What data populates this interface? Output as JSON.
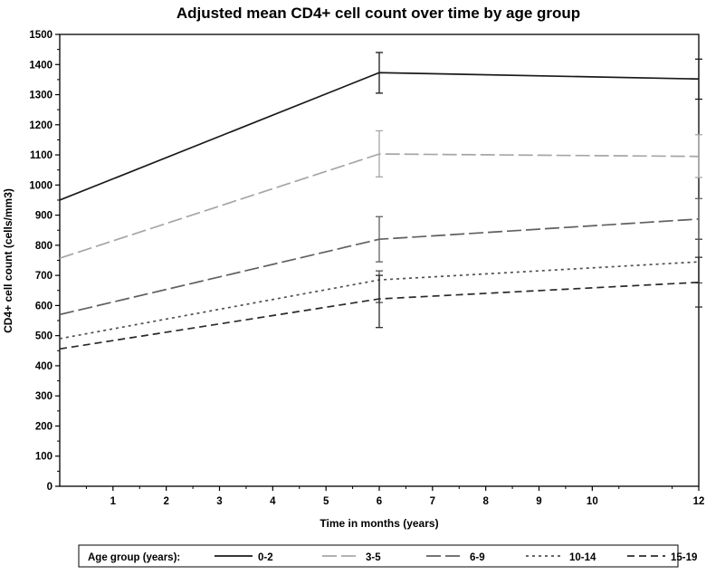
{
  "chart_data": {
    "type": "line",
    "title": "Adjusted mean CD4+ cell count over time by age group",
    "xlabel": "Time in months (years)",
    "ylabel": "CD4+ cell count (cells/mm3)",
    "xlim": [
      0,
      12
    ],
    "ylim": [
      0,
      1500
    ],
    "x_ticks": [
      1,
      2,
      3,
      4,
      5,
      6,
      7,
      8,
      9,
      10,
      12
    ],
    "y_ticks": [
      0,
      100,
      200,
      300,
      400,
      500,
      600,
      700,
      800,
      900,
      1000,
      1100,
      1200,
      1300,
      1400,
      1500
    ],
    "grid": false,
    "legend": {
      "title": "Age group (years):",
      "placement": "bottom"
    },
    "x": [
      0,
      6,
      12
    ],
    "series": [
      {
        "name": "0-2",
        "values": [
          950,
          1373,
          1352
        ],
        "ci_low": [
          null,
          1305,
          1285
        ],
        "ci_high": [
          null,
          1440,
          1418
        ],
        "color": "#1a1a1a",
        "dash": "solid"
      },
      {
        "name": "3-5",
        "values": [
          757,
          1103,
          1095
        ],
        "ci_low": [
          null,
          1027,
          1025
        ],
        "ci_high": [
          null,
          1180,
          1167
        ],
        "color": "#a6a6a6",
        "dash": "longdash"
      },
      {
        "name": "6-9",
        "values": [
          570,
          820,
          887
        ],
        "ci_low": [
          null,
          745,
          820
        ],
        "ci_high": [
          null,
          895,
          955
        ],
        "color": "#606060",
        "dash": "longdash"
      },
      {
        "name": "10-14",
        "values": [
          490,
          685,
          745
        ],
        "ci_low": [
          null,
          610,
          675
        ],
        "ci_high": [
          null,
          715,
          820
        ],
        "color": "#505050",
        "dash": "dot"
      },
      {
        "name": "15-19",
        "values": [
          456,
          622,
          677
        ],
        "ci_low": [
          null,
          527,
          595
        ],
        "ci_high": [
          null,
          700,
          760
        ],
        "color": "#2a2a2a",
        "dash": "dash"
      }
    ]
  }
}
